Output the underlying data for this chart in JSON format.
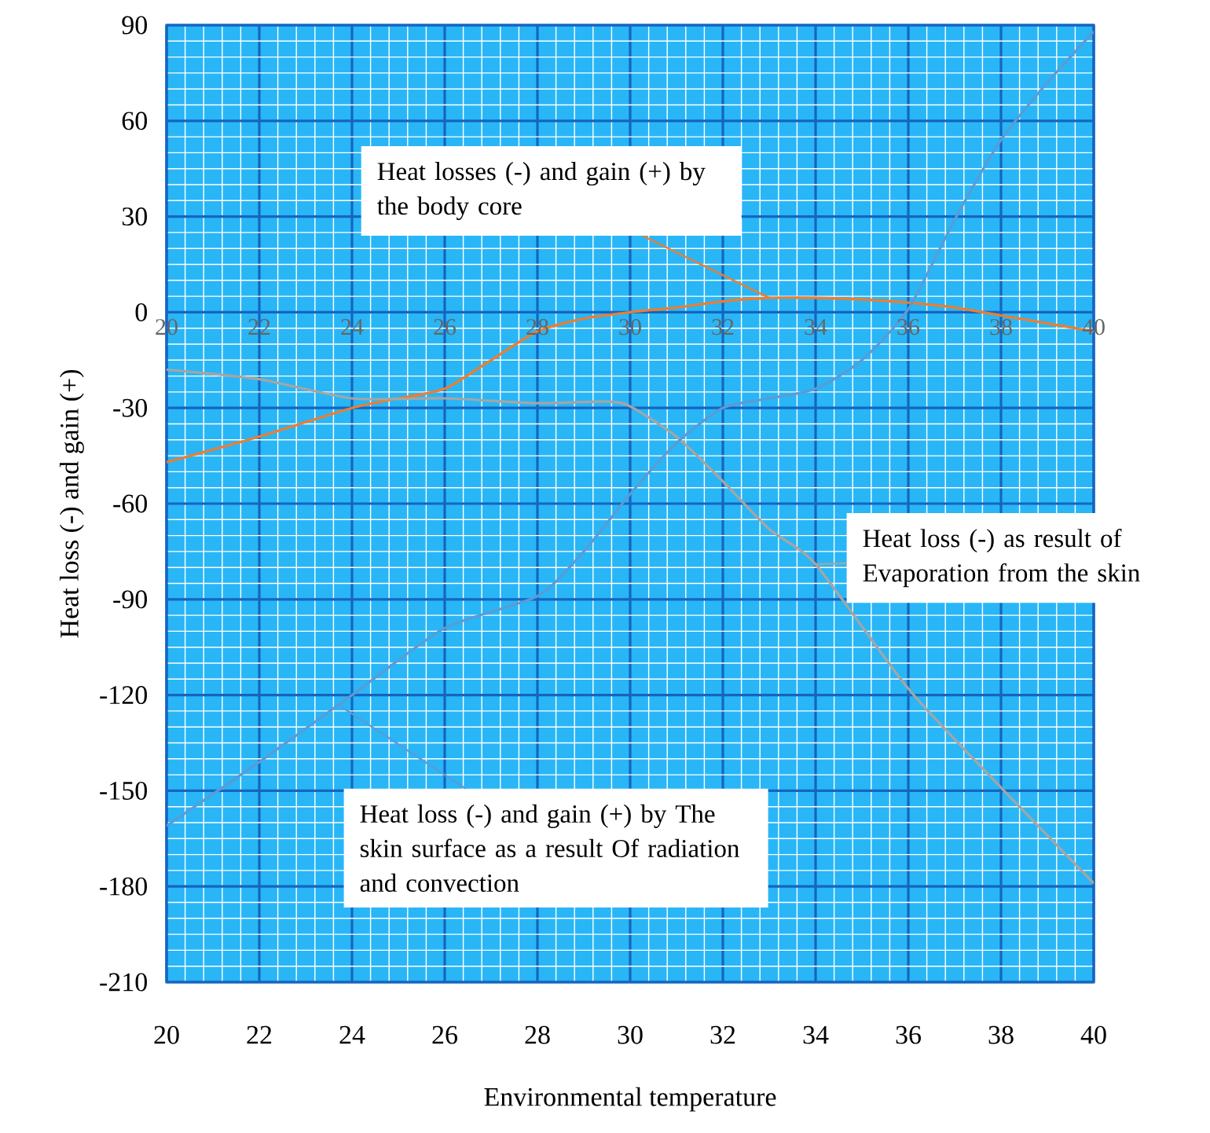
{
  "chart_data": {
    "type": "line",
    "xlabel": "Environmental temperature",
    "ylabel": "Heat loss (-) and gain (+)",
    "xlim": [
      20,
      40
    ],
    "xticks": [
      20,
      22,
      24,
      26,
      28,
      30,
      32,
      34,
      36,
      38,
      40
    ],
    "x2lim": [
      20,
      40
    ],
    "x2ticks": [
      20,
      22,
      24,
      26,
      28,
      30,
      32,
      34,
      36,
      38,
      40
    ],
    "ylim": [
      -210,
      90
    ],
    "yticks": [
      -210,
      -180,
      -150,
      -120,
      -90,
      -60,
      -30,
      0,
      30,
      60,
      90
    ],
    "grid": true,
    "marker": "none",
    "line_style": "solid",
    "series": [
      {
        "color": "#ed7d31",
        "x": [
          20,
          22,
          24,
          25,
          26,
          27,
          28,
          29,
          30,
          31,
          32,
          33,
          34,
          35,
          36,
          37,
          38,
          39,
          40
        ],
        "values": [
          -47,
          -39,
          -30,
          -27,
          -24,
          -15,
          -6,
          -2,
          0,
          1.5,
          3.4,
          4.5,
          4.5,
          4,
          3,
          1.5,
          -1,
          -3.5,
          -6
        ]
      },
      {
        "color": "#a5a5a5",
        "x": [
          20,
          22,
          24,
          26,
          28,
          29.5,
          30,
          31,
          32,
          33,
          34,
          36,
          38,
          40
        ],
        "values": [
          -18,
          -21,
          -27,
          -27,
          -28.5,
          -28,
          -29.5,
          -39,
          -53,
          -68,
          -79,
          -118,
          -149,
          -179
        ]
      },
      {
        "color": "#5b9bd5",
        "x": [
          20,
          22,
          24,
          26,
          28,
          29,
          30,
          31,
          32,
          33,
          34,
          35,
          36,
          37,
          38,
          39,
          40
        ],
        "values": [
          -161,
          -141,
          -120,
          -99,
          -89,
          -75,
          -57,
          -41,
          -30,
          -27,
          -24,
          -15,
          1,
          29,
          54,
          72,
          88
        ]
      }
    ],
    "annotations": [
      {
        "text": "Heat losses (-) and gain (+) by the body core",
        "x": 33,
        "y": 4.5
      },
      {
        "text": "Heat loss (-) as result of Evaporation from the skin",
        "x": 34,
        "y": -79
      },
      {
        "text": "Heat loss (-) and gain (+) by The skin surface as a result Of radiation and convection",
        "x": 23.7,
        "y": -123
      }
    ]
  }
}
